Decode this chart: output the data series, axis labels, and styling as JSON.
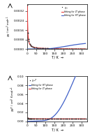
{
  "top_panel": {
    "xlabel": "T / K  →",
    "ylabel_parts": [
      "$\\chi_M$ / cm$^3$",
      "mol$^{-1}$"
    ],
    "ylim": [
      0.0,
      0.0038
    ],
    "xlim": [
      0,
      330
    ],
    "yticks": [
      0.0,
      0.0008,
      0.0016,
      0.0024,
      0.0032
    ],
    "xticks": [
      0,
      50,
      100,
      150,
      200,
      250,
      300
    ],
    "fit_LT_color": "#e84040",
    "fit_HT_color": "#4060c8",
    "data_color": "#303030",
    "legend_loc": "upper right"
  },
  "bottom_panel": {
    "xlabel": "T / K  →",
    "ylabel_parts": [
      "$\\chi_M T$ / cm$^3$",
      "K mol$^{-1}$"
    ],
    "ylim": [
      0.0,
      0.1
    ],
    "xlim": [
      0,
      330
    ],
    "yticks": [
      0.0,
      0.02,
      0.04,
      0.06,
      0.08,
      0.1
    ],
    "xticks": [
      0,
      50,
      100,
      150,
      200,
      250,
      300
    ],
    "fit_HT_color": "#4060c8",
    "fit_LT_color": "#e84040",
    "data_color": "#303030",
    "legend_loc": "upper left"
  }
}
